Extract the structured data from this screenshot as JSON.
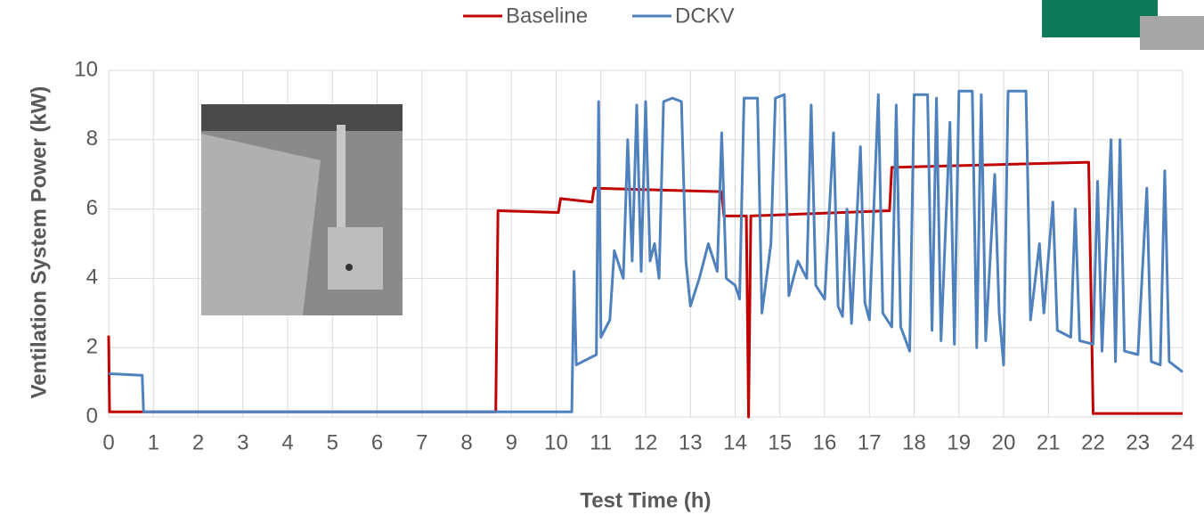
{
  "chart_data": {
    "type": "line",
    "x_label": "Test Time (h)",
    "y_label": "Ventilation System Power (kW)",
    "xlim": [
      0,
      24
    ],
    "xticks": [
      0,
      1,
      2,
      3,
      4,
      5,
      6,
      7,
      8,
      9,
      10,
      11,
      12,
      13,
      14,
      15,
      16,
      17,
      18,
      19,
      20,
      21,
      22,
      23,
      24
    ],
    "ylim": [
      0,
      10
    ],
    "yticks": [
      0,
      2,
      4,
      6,
      8,
      10
    ],
    "grid": true,
    "legend": "top",
    "series": [
      {
        "name": "Baseline",
        "color": "#c00000",
        "x": [
          0,
          0.02,
          8.65,
          8.7,
          10.05,
          10.1,
          10.8,
          10.85,
          13.7,
          13.75,
          14.25,
          14.3,
          14.35,
          17.45,
          17.5,
          21.9,
          22.0,
          24
        ],
        "values": [
          2.35,
          0.15,
          0.15,
          5.95,
          5.9,
          6.3,
          6.2,
          6.6,
          6.5,
          5.8,
          5.8,
          0,
          5.8,
          5.95,
          7.2,
          7.35,
          0.1,
          0.1
        ]
      },
      {
        "name": "DCKV",
        "color": "#4f81bd",
        "x": [
          0,
          0.75,
          0.78,
          10.35,
          10.4,
          10.45,
          10.9,
          10.95,
          11.0,
          11.2,
          11.3,
          11.5,
          11.6,
          11.7,
          11.8,
          11.9,
          12.0,
          12.1,
          12.2,
          12.3,
          12.4,
          12.6,
          12.8,
          12.9,
          13.0,
          13.2,
          13.4,
          13.6,
          13.7,
          13.8,
          14.0,
          14.1,
          14.2,
          14.5,
          14.6,
          14.8,
          14.9,
          15.1,
          15.2,
          15.4,
          15.6,
          15.7,
          15.8,
          16.0,
          16.2,
          16.3,
          16.4,
          16.5,
          16.6,
          16.8,
          16.9,
          17.0,
          17.2,
          17.3,
          17.5,
          17.6,
          17.7,
          17.9,
          18.0,
          18.3,
          18.4,
          18.5,
          18.6,
          18.8,
          18.9,
          19.0,
          19.3,
          19.4,
          19.5,
          19.6,
          19.8,
          19.9,
          20.0,
          20.1,
          20.5,
          20.6,
          20.8,
          20.9,
          21.1,
          21.2,
          21.5,
          21.6,
          21.7,
          22.0,
          22.1,
          22.2,
          22.4,
          22.5,
          22.6,
          22.7,
          23.0,
          23.2,
          23.3,
          23.5,
          23.6,
          23.7,
          24.0
        ],
        "values": [
          1.25,
          1.2,
          0.15,
          0.15,
          4.2,
          1.5,
          1.8,
          9.1,
          2.3,
          2.8,
          4.8,
          4.0,
          8.0,
          4.5,
          9.0,
          4.2,
          9.1,
          4.5,
          5.0,
          4.0,
          9.1,
          9.2,
          9.1,
          4.5,
          3.2,
          4.0,
          5.0,
          4.2,
          8.2,
          4.0,
          3.8,
          3.4,
          9.2,
          9.2,
          3.0,
          5.0,
          9.2,
          9.3,
          3.5,
          4.5,
          4.0,
          9.0,
          3.8,
          3.4,
          8.2,
          3.2,
          2.9,
          6.0,
          2.7,
          7.8,
          3.3,
          2.8,
          9.3,
          3.0,
          2.6,
          9.0,
          2.6,
          1.9,
          9.3,
          9.3,
          2.5,
          9.2,
          2.2,
          8.5,
          2.1,
          9.4,
          9.4,
          2.0,
          9.3,
          2.2,
          7.0,
          3.0,
          1.5,
          9.4,
          9.4,
          2.8,
          5.0,
          3.0,
          6.2,
          2.5,
          2.3,
          6.0,
          2.2,
          2.1,
          6.8,
          1.9,
          8.0,
          1.6,
          8.0,
          1.9,
          1.8,
          6.6,
          1.6,
          1.5,
          7.1,
          1.6,
          1.3
        ]
      }
    ]
  }
}
